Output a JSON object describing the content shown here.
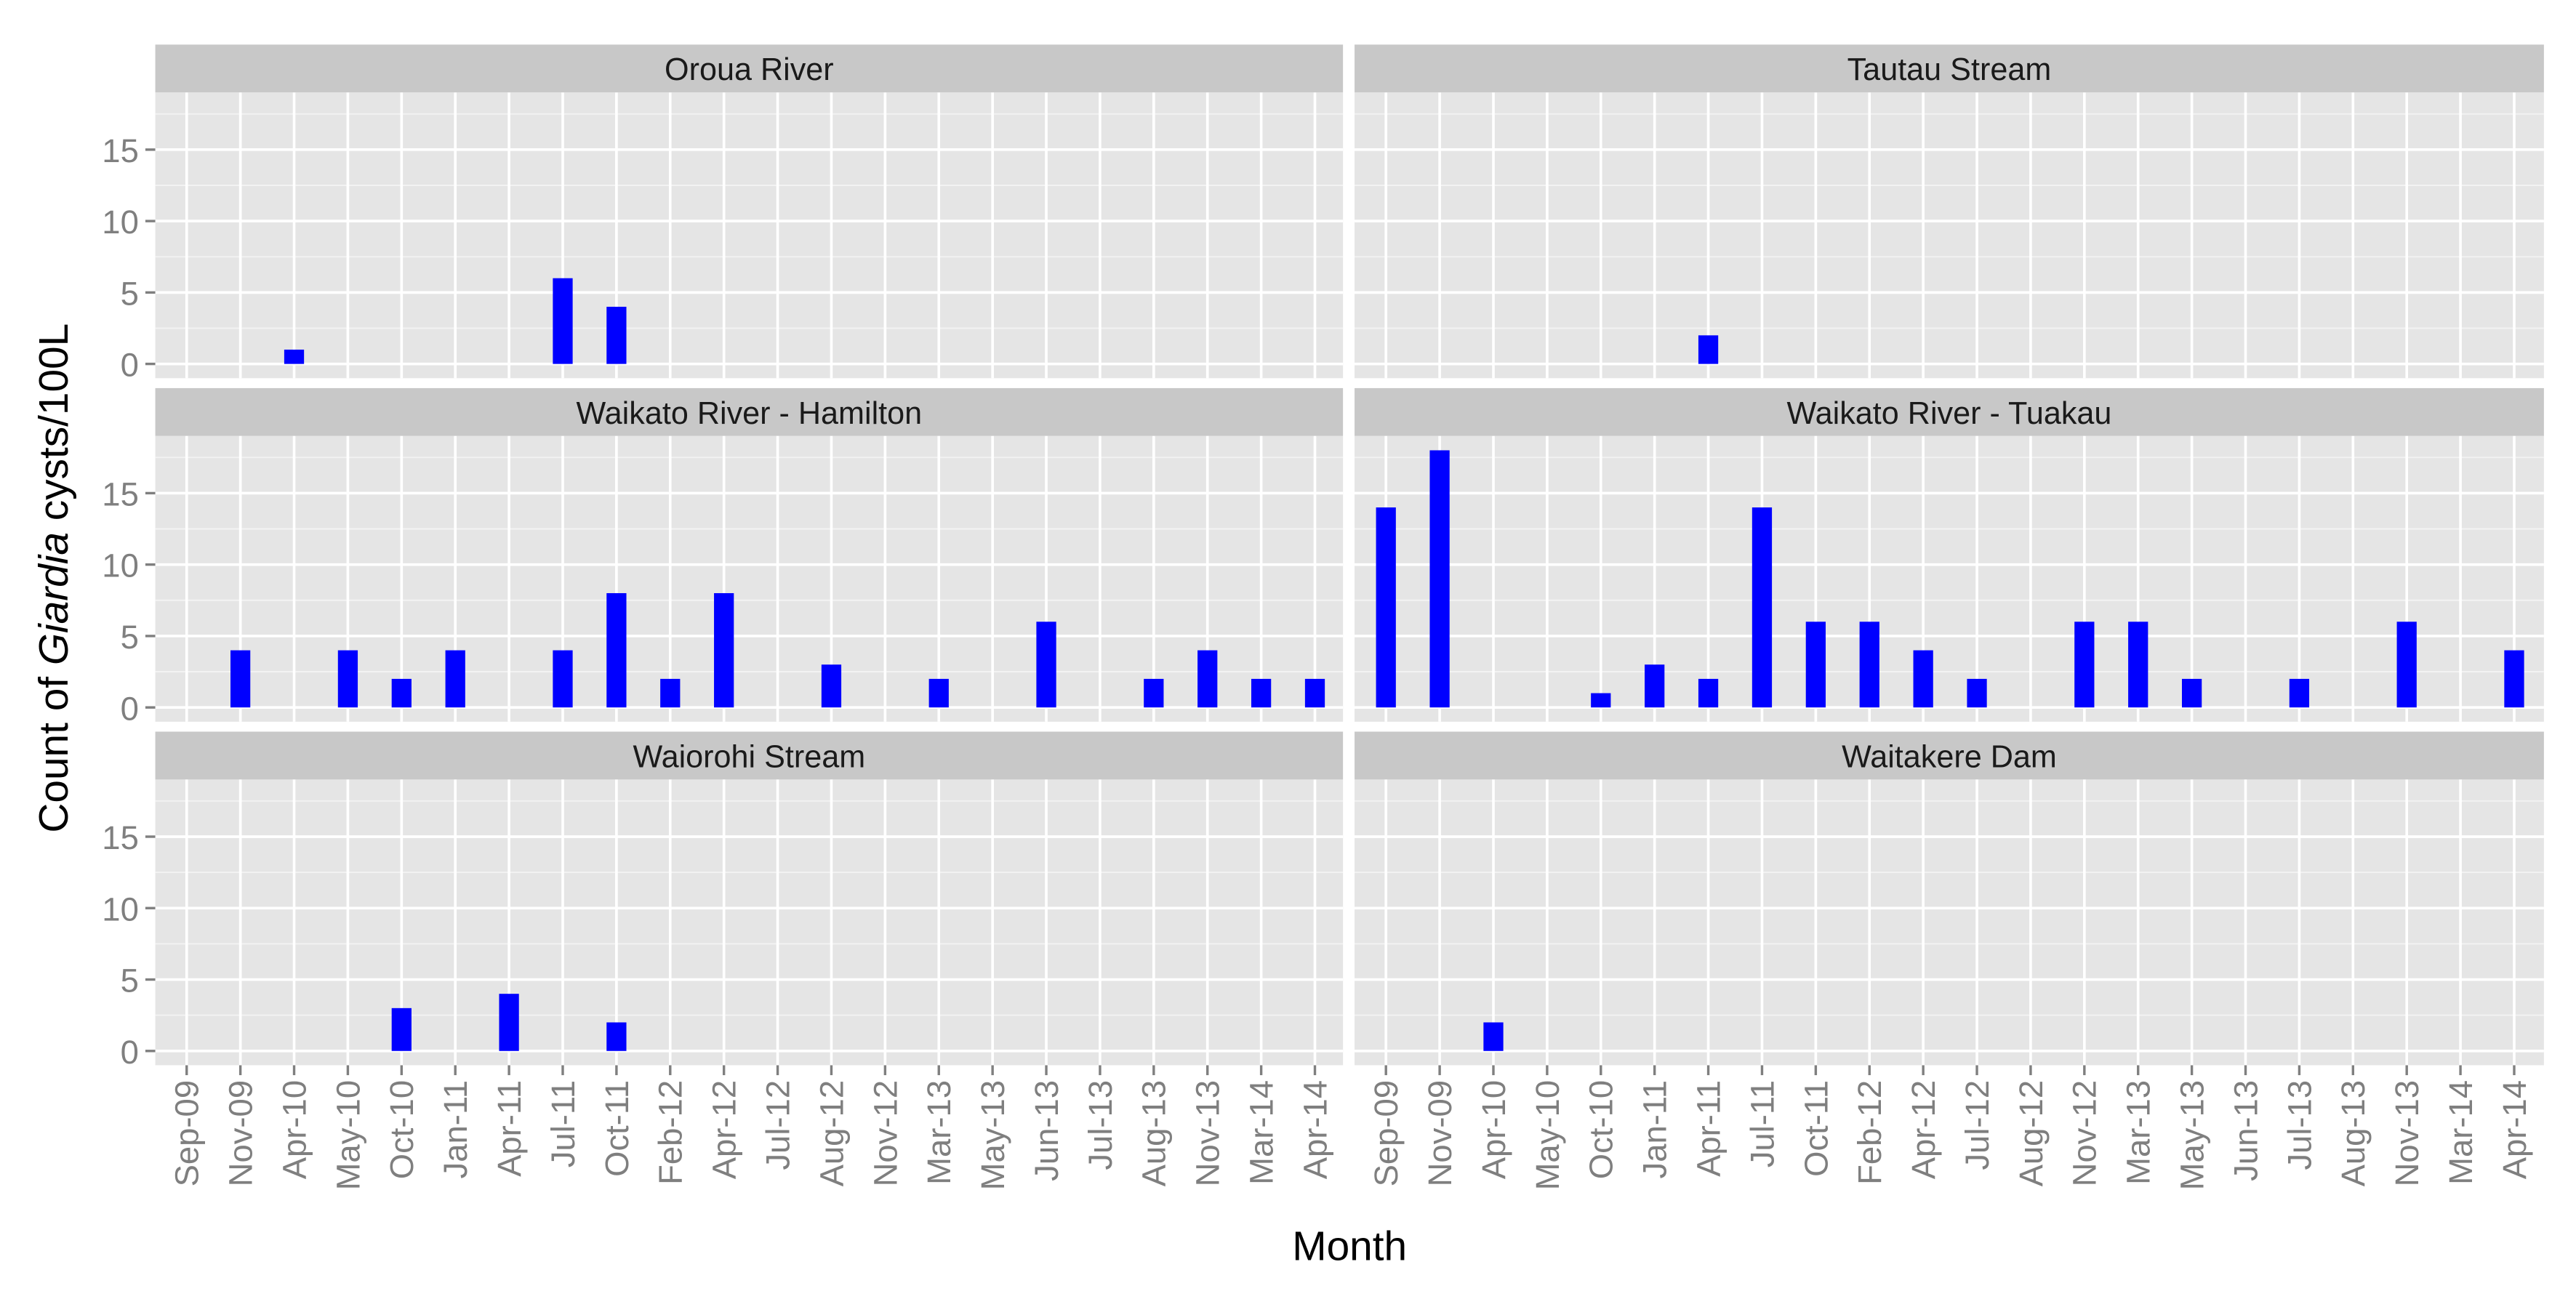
{
  "chart_data": {
    "type": "bar",
    "layout": "faceted 3x2 grid, shared axes",
    "ylabel_parts": [
      "Count of ",
      "Giardia",
      " cysts/100L"
    ],
    "xlabel": "Month",
    "categories": [
      "Sep-09",
      "Nov-09",
      "Apr-10",
      "May-10",
      "Oct-10",
      "Jan-11",
      "Apr-11",
      "Jul-11",
      "Oct-11",
      "Feb-12",
      "Apr-12",
      "Jul-12",
      "Aug-12",
      "Nov-12",
      "Mar-13",
      "May-13",
      "Jun-13",
      "Jul-13",
      "Aug-13",
      "Nov-13",
      "Mar-14",
      "Apr-14"
    ],
    "y_ticks": [
      0,
      5,
      10,
      15
    ],
    "ylim": [
      -1,
      19
    ],
    "grid": true,
    "bar_color": "#0000ff",
    "panels": [
      {
        "title": "Oroua River",
        "values": [
          0,
          0,
          1,
          0,
          0,
          0,
          0,
          6,
          4,
          0,
          0,
          0,
          0,
          0,
          0,
          0,
          0,
          0,
          0,
          0,
          0,
          0
        ]
      },
      {
        "title": "Tautau Stream",
        "values": [
          0,
          0,
          0,
          0,
          0,
          0,
          2,
          0,
          0,
          0,
          0,
          0,
          0,
          0,
          0,
          0,
          0,
          0,
          0,
          0,
          0,
          0
        ]
      },
      {
        "title": "Waikato River - Hamilton",
        "values": [
          0,
          4,
          0,
          4,
          2,
          4,
          0,
          4,
          8,
          2,
          8,
          0,
          3,
          0,
          2,
          0,
          6,
          0,
          2,
          4,
          2,
          2
        ]
      },
      {
        "title": "Waikato River - Tuakau",
        "values": [
          14,
          18,
          0,
          0,
          1,
          3,
          2,
          14,
          6,
          6,
          4,
          2,
          0,
          6,
          6,
          2,
          0,
          2,
          0,
          6,
          0,
          4
        ]
      },
      {
        "title": "Waiorohi Stream",
        "values": [
          0,
          0,
          0,
          0,
          3,
          0,
          4,
          0,
          2,
          0,
          0,
          0,
          0,
          0,
          0,
          0,
          0,
          0,
          0,
          0,
          0,
          0
        ]
      },
      {
        "title": "Waitakere Dam",
        "values": [
          0,
          0,
          2,
          0,
          0,
          0,
          0,
          0,
          0,
          0,
          0,
          0,
          0,
          0,
          0,
          0,
          0,
          0,
          0,
          0,
          0,
          0
        ]
      }
    ]
  }
}
